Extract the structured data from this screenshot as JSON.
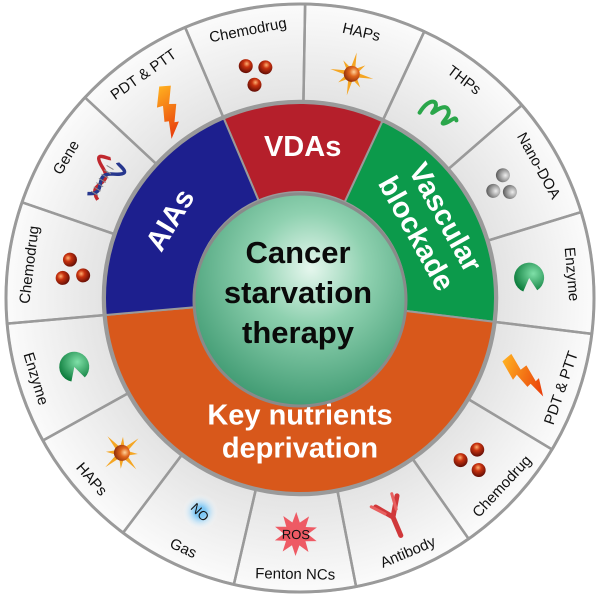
{
  "center": {
    "lines": [
      "Cancer",
      "starvation",
      "therapy"
    ]
  },
  "inner_ring": [
    {
      "key": "vdas",
      "lines": [
        "VDAs"
      ],
      "color": "#b51f2b",
      "start_deg": 337,
      "end_deg": 385
    },
    {
      "key": "vascular-blockade",
      "lines": [
        "Vascular",
        "blockade"
      ],
      "color": "#0c9a4b",
      "start_deg": 25,
      "end_deg": 97
    },
    {
      "key": "key-nutrients-deprivation",
      "lines": [
        "Key nutrients",
        "deprivation"
      ],
      "color": "#d8581b",
      "start_deg": 97,
      "end_deg": 265
    },
    {
      "key": "aias",
      "lines": [
        "AIAs"
      ],
      "color": "#1d1f8e",
      "start_deg": 265,
      "end_deg": 337
    }
  ],
  "outer_ring": [
    {
      "label": "HAPs",
      "icon": "starburst-sphere-icon"
    },
    {
      "label": "THPs",
      "icon": "green-spiral-icon"
    },
    {
      "label": "Nano-DOA",
      "icon": "gray-spheres-icon"
    },
    {
      "label": "Enzyme",
      "icon": "pacman-enzyme-icon"
    },
    {
      "label": "PDT & PTT",
      "icon": "lightning-bolt-icon"
    },
    {
      "label": "Chemodrug",
      "icon": "red-spheres-icon"
    },
    {
      "label": "Antibody",
      "icon": "antibody-icon"
    },
    {
      "label": "Fenton NCs",
      "icon": "ros-burst-icon",
      "icon_text": "ROS"
    },
    {
      "label": "Gas",
      "icon": "no-gas-icon",
      "icon_text": "NO"
    },
    {
      "label": "HAPs",
      "icon": "starburst-sphere-icon"
    },
    {
      "label": "Enzyme",
      "icon": "pacman-enzyme-icon"
    },
    {
      "label": "Chemodrug",
      "icon": "red-spheres-icon"
    },
    {
      "label": "Gene",
      "icon": "dna-helix-icon"
    },
    {
      "label": "PDT & PTT",
      "icon": "lightning-bolt-icon"
    },
    {
      "label": "Chemodrug",
      "icon": "red-spheres-icon"
    }
  ]
}
